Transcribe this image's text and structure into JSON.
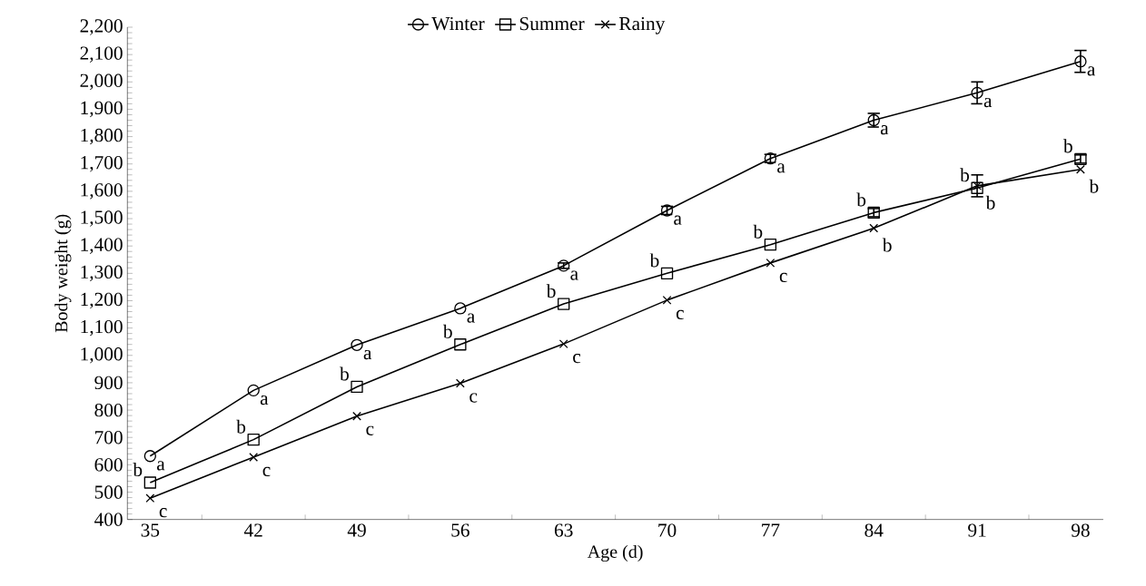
{
  "chart_data": {
    "type": "line",
    "xlabel": "Age (d)",
    "ylabel": "Body weight (g)",
    "categories": [
      "35",
      "42",
      "49",
      "56",
      "63",
      "70",
      "77",
      "84",
      "91",
      "98"
    ],
    "series": [
      {
        "name": "Winter",
        "color": "#000000",
        "marker": "circle",
        "values": [
          632,
          872,
          1038,
          1172,
          1328,
          1530,
          1720,
          1860,
          1960,
          2075
        ],
        "errors": [
          null,
          null,
          null,
          null,
          10,
          15,
          15,
          25,
          40,
          40
        ]
      },
      {
        "name": "Summer",
        "color": "#000000",
        "marker": "square",
        "values": [
          535,
          692,
          885,
          1040,
          1188,
          1300,
          1405,
          1522,
          1612,
          1718
        ],
        "errors": [
          null,
          null,
          null,
          null,
          null,
          null,
          null,
          15,
          null,
          15
        ]
      },
      {
        "name": "Rainy",
        "color": "#000000",
        "marker": "cross",
        "values": [
          478,
          628,
          778,
          898,
          1042,
          1202,
          1338,
          1465,
          1620,
          1680
        ],
        "errors": [
          null,
          null,
          null,
          null,
          null,
          null,
          null,
          null,
          40,
          null
        ]
      }
    ],
    "annotations": [
      {
        "text": "a",
        "x": "35",
        "y": 632
      },
      {
        "text": "b",
        "x": "35",
        "y": 535
      },
      {
        "text": "c",
        "x": "35",
        "y": 478
      },
      {
        "text": "a",
        "x": "42",
        "y": 872
      },
      {
        "text": "b",
        "x": "42",
        "y": 692
      },
      {
        "text": "c",
        "x": "42",
        "y": 628
      },
      {
        "text": "a",
        "x": "49",
        "y": 1038
      },
      {
        "text": "b",
        "x": "49",
        "y": 885
      },
      {
        "text": "c",
        "x": "49",
        "y": 778
      },
      {
        "text": "a",
        "x": "56",
        "y": 1172
      },
      {
        "text": "b",
        "x": "56",
        "y": 1040
      },
      {
        "text": "c",
        "x": "56",
        "y": 898
      },
      {
        "text": "a",
        "x": "63",
        "y": 1328
      },
      {
        "text": "b",
        "x": "63",
        "y": 1188
      },
      {
        "text": "c",
        "x": "63",
        "y": 1042
      },
      {
        "text": "a",
        "x": "70",
        "y": 1530
      },
      {
        "text": "b",
        "x": "70",
        "y": 1300
      },
      {
        "text": "c",
        "x": "70",
        "y": 1202
      },
      {
        "text": "a",
        "x": "77",
        "y": 1720
      },
      {
        "text": "b",
        "x": "77",
        "y": 1405
      },
      {
        "text": "c",
        "x": "77",
        "y": 1338
      },
      {
        "text": "a",
        "x": "84",
        "y": 1860
      },
      {
        "text": "b",
        "x": "84",
        "y": 1522
      },
      {
        "text": "b",
        "x": "84",
        "y": 1465
      },
      {
        "text": "a",
        "x": "91",
        "y": 1960
      },
      {
        "text": "b",
        "x": "91",
        "y": 1612
      },
      {
        "text": "b",
        "x": "91",
        "y": 1620
      },
      {
        "text": "a",
        "x": "98",
        "y": 2075
      },
      {
        "text": "b",
        "x": "98",
        "y": 1718
      },
      {
        "text": "b",
        "x": "98",
        "y": 1680
      }
    ],
    "ylim": [
      400,
      2200
    ],
    "yticks": [
      400,
      500,
      600,
      700,
      800,
      900,
      {
        "value": 1000,
        "label": "1,000"
      },
      {
        "value": 1100,
        "label": "1,100"
      },
      {
        "value": 1200,
        "label": "1,200"
      },
      {
        "value": 1300,
        "label": "1,300"
      },
      {
        "value": 1400,
        "label": "1,400"
      },
      {
        "value": 1500,
        "label": "1,500"
      },
      {
        "value": 1600,
        "label": "1,600"
      },
      {
        "value": 1700,
        "label": "1,700"
      },
      {
        "value": 1800,
        "label": "1,800"
      },
      {
        "value": 1900,
        "label": "1,900"
      },
      {
        "value": 2000,
        "label": "2,000"
      },
      {
        "value": 2100,
        "label": "2,100"
      },
      {
        "value": 2200,
        "label": "2,200"
      }
    ],
    "legend": "top",
    "grid": false,
    "line_style": "solid"
  }
}
